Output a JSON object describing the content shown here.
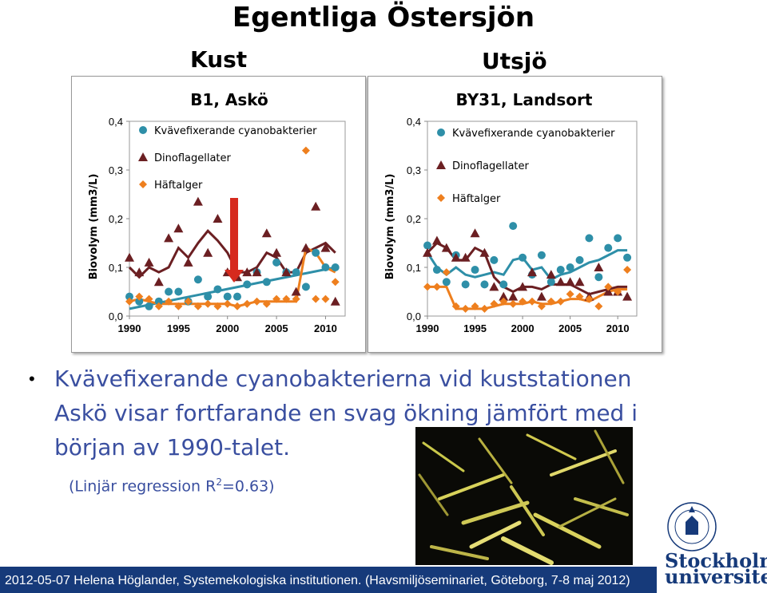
{
  "title": "Egentliga Östersjön",
  "left_heading": "Kust",
  "right_heading": "Utsjö",
  "colors": {
    "cyano": "#2e8fa8",
    "dino": "#6b1f22",
    "haft": "#ee7f1e",
    "footer": "#163a7a",
    "text_blue": "#3a4fa0"
  },
  "chart_data": [
    {
      "type": "scatter",
      "title": "B1, Askö",
      "ylabel": "Biovolym (mm3/L)",
      "xlim": [
        1990,
        2012
      ],
      "ylim": [
        0,
        0.4
      ],
      "xticks": [
        "1990",
        "1995",
        "2000",
        "2005",
        "2010"
      ],
      "yticks": [
        "0,0",
        "0,1",
        "0,2",
        "0,3",
        "0,4"
      ],
      "legend_position": "top-left",
      "series": [
        {
          "name": "Kvävefixerande cyanobakterier",
          "marker": "circle",
          "color": "#2e8fa8",
          "points": [
            [
              1990,
              0.04
            ],
            [
              1991,
              0.03
            ],
            [
              1992,
              0.02
            ],
            [
              1993,
              0.03
            ],
            [
              1994,
              0.05
            ],
            [
              1995,
              0.05
            ],
            [
              1996,
              0.03
            ],
            [
              1997,
              0.075
            ],
            [
              1998,
              0.04
            ],
            [
              1999,
              0.055
            ],
            [
              2000,
              0.04
            ],
            [
              2001,
              0.04
            ],
            [
              2002,
              0.065
            ],
            [
              2003,
              0.09
            ],
            [
              2004,
              0.07
            ],
            [
              2005,
              0.11
            ],
            [
              2006,
              0.09
            ],
            [
              2007,
              0.09
            ],
            [
              2008,
              0.06
            ],
            [
              2009,
              0.13
            ],
            [
              2010,
              0.1
            ],
            [
              2011,
              0.1
            ]
          ],
          "line": [
            [
              1990,
              0.015
            ],
            [
              2011,
              0.1
            ]
          ]
        },
        {
          "name": "Dinoflagellater",
          "marker": "triangle",
          "color": "#6b1f22",
          "points": [
            [
              1990,
              0.12
            ],
            [
              1991,
              0.09
            ],
            [
              1992,
              0.11
            ],
            [
              1993,
              0.07
            ],
            [
              1994,
              0.16
            ],
            [
              1995,
              0.18
            ],
            [
              1996,
              0.11
            ],
            [
              1997,
              0.235
            ],
            [
              1998,
              0.13
            ],
            [
              1999,
              0.2
            ],
            [
              2000,
              0.09
            ],
            [
              2001,
              0.08
            ],
            [
              2002,
              0.09
            ],
            [
              2003,
              0.09
            ],
            [
              2004,
              0.17
            ],
            [
              2005,
              0.13
            ],
            [
              2006,
              0.09
            ],
            [
              2007,
              0.05
            ],
            [
              2008,
              0.14
            ],
            [
              2009,
              0.225
            ],
            [
              2010,
              0.14
            ],
            [
              2011,
              0.03
            ]
          ],
          "line": [
            [
              1990,
              0.1
            ],
            [
              1991,
              0.08
            ],
            [
              1992,
              0.1
            ],
            [
              1993,
              0.09
            ],
            [
              1994,
              0.1
            ],
            [
              1995,
              0.14
            ],
            [
              1996,
              0.12
            ],
            [
              1997,
              0.15
            ],
            [
              1998,
              0.175
            ],
            [
              1999,
              0.155
            ],
            [
              2000,
              0.13
            ],
            [
              2001,
              0.09
            ],
            [
              2002,
              0.09
            ],
            [
              2003,
              0.1
            ],
            [
              2004,
              0.13
            ],
            [
              2005,
              0.12
            ],
            [
              2006,
              0.09
            ],
            [
              2007,
              0.09
            ],
            [
              2008,
              0.13
            ],
            [
              2009,
              0.14
            ],
            [
              2010,
              0.15
            ],
            [
              2011,
              0.13
            ]
          ]
        },
        {
          "name": "Häftalger",
          "marker": "diamond",
          "color": "#ee7f1e",
          "points": [
            [
              1990,
              0.03
            ],
            [
              1991,
              0.04
            ],
            [
              1992,
              0.035
            ],
            [
              1993,
              0.02
            ],
            [
              1994,
              0.03
            ],
            [
              1995,
              0.02
            ],
            [
              1996,
              0.03
            ],
            [
              1997,
              0.02
            ],
            [
              1998,
              0.025
            ],
            [
              1999,
              0.02
            ],
            [
              2000,
              0.025
            ],
            [
              2001,
              0.02
            ],
            [
              2002,
              0.025
            ],
            [
              2003,
              0.03
            ],
            [
              2004,
              0.025
            ],
            [
              2005,
              0.035
            ],
            [
              2006,
              0.035
            ],
            [
              2007,
              0.035
            ],
            [
              2008,
              0.34
            ],
            [
              2009,
              0.035
            ],
            [
              2010,
              0.035
            ],
            [
              2011,
              0.07
            ]
          ],
          "line": [
            [
              1990,
              0.03
            ],
            [
              1991,
              0.035
            ],
            [
              1992,
              0.03
            ],
            [
              1993,
              0.025
            ],
            [
              1994,
              0.025
            ],
            [
              1995,
              0.025
            ],
            [
              1996,
              0.025
            ],
            [
              1997,
              0.025
            ],
            [
              1998,
              0.025
            ],
            [
              1999,
              0.025
            ],
            [
              2000,
              0.025
            ],
            [
              2001,
              0.02
            ],
            [
              2002,
              0.025
            ],
            [
              2003,
              0.03
            ],
            [
              2004,
              0.03
            ],
            [
              2005,
              0.03
            ],
            [
              2006,
              0.03
            ],
            [
              2007,
              0.03
            ],
            [
              2008,
              0.14
            ],
            [
              2009,
              0.13
            ],
            [
              2010,
              0.1
            ],
            [
              2011,
              0.09
            ]
          ]
        }
      ]
    },
    {
      "type": "scatter",
      "title": "BY31, Landsort",
      "ylabel": "Biovolym (mm3/L)",
      "xlim": [
        1990,
        2012
      ],
      "ylim": [
        0,
        0.4
      ],
      "xticks": [
        "1990",
        "1995",
        "2000",
        "2005",
        "2010"
      ],
      "yticks": [
        "0,0",
        "0,1",
        "0,2",
        "0,3",
        "0,4"
      ],
      "legend_position": "top-left",
      "series": [
        {
          "name": "Kvävefixerande cyanobakterier",
          "marker": "circle",
          "color": "#2e8fa8",
          "points": [
            [
              1990,
              0.145
            ],
            [
              1991,
              0.095
            ],
            [
              1992,
              0.07
            ],
            [
              1993,
              0.125
            ],
            [
              1994,
              0.065
            ],
            [
              1995,
              0.095
            ],
            [
              1996,
              0.065
            ],
            [
              1997,
              0.115
            ],
            [
              1998,
              0.065
            ],
            [
              1999,
              0.185
            ],
            [
              2000,
              0.12
            ],
            [
              2001,
              0.085
            ],
            [
              2002,
              0.125
            ],
            [
              2003,
              0.07
            ],
            [
              2004,
              0.095
            ],
            [
              2005,
              0.1
            ],
            [
              2006,
              0.115
            ],
            [
              2007,
              0.16
            ],
            [
              2008,
              0.08
            ],
            [
              2009,
              0.14
            ],
            [
              2010,
              0.16
            ],
            [
              2011,
              0.12
            ]
          ],
          "line": [
            [
              1990,
              0.13
            ],
            [
              1991,
              0.1
            ],
            [
              1992,
              0.085
            ],
            [
              1993,
              0.1
            ],
            [
              1994,
              0.085
            ],
            [
              1995,
              0.08
            ],
            [
              1996,
              0.085
            ],
            [
              1997,
              0.09
            ],
            [
              1998,
              0.085
            ],
            [
              1999,
              0.115
            ],
            [
              2000,
              0.12
            ],
            [
              2001,
              0.095
            ],
            [
              2002,
              0.1
            ],
            [
              2003,
              0.075
            ],
            [
              2004,
              0.085
            ],
            [
              2005,
              0.09
            ],
            [
              2006,
              0.1
            ],
            [
              2007,
              0.11
            ],
            [
              2008,
              0.115
            ],
            [
              2009,
              0.125
            ],
            [
              2010,
              0.135
            ],
            [
              2011,
              0.135
            ]
          ]
        },
        {
          "name": "Dinoflagellater",
          "marker": "triangle",
          "color": "#6b1f22",
          "points": [
            [
              1990,
              0.13
            ],
            [
              1991,
              0.155
            ],
            [
              1992,
              0.14
            ],
            [
              1993,
              0.12
            ],
            [
              1994,
              0.12
            ],
            [
              1995,
              0.17
            ],
            [
              1996,
              0.13
            ],
            [
              1997,
              0.06
            ],
            [
              1998,
              0.04
            ],
            [
              1999,
              0.04
            ],
            [
              2000,
              0.06
            ],
            [
              2001,
              0.09
            ],
            [
              2002,
              0.04
            ],
            [
              2003,
              0.085
            ],
            [
              2004,
              0.07
            ],
            [
              2005,
              0.07
            ],
            [
              2006,
              0.07
            ],
            [
              2007,
              0.04
            ],
            [
              2008,
              0.1
            ],
            [
              2009,
              0.05
            ],
            [
              2010,
              0.05
            ],
            [
              2011,
              0.04
            ]
          ],
          "line": [
            [
              1990,
              0.13
            ],
            [
              1991,
              0.15
            ],
            [
              1992,
              0.14
            ],
            [
              1993,
              0.115
            ],
            [
              1994,
              0.115
            ],
            [
              1995,
              0.14
            ],
            [
              1996,
              0.13
            ],
            [
              1997,
              0.08
            ],
            [
              1998,
              0.06
            ],
            [
              1999,
              0.05
            ],
            [
              2000,
              0.06
            ],
            [
              2001,
              0.06
            ],
            [
              2002,
              0.055
            ],
            [
              2003,
              0.065
            ],
            [
              2004,
              0.065
            ],
            [
              2005,
              0.065
            ],
            [
              2006,
              0.055
            ],
            [
              2007,
              0.045
            ],
            [
              2008,
              0.05
            ],
            [
              2009,
              0.055
            ],
            [
              2010,
              0.06
            ],
            [
              2011,
              0.06
            ]
          ]
        },
        {
          "name": "Häftalger",
          "marker": "diamond",
          "color": "#ee7f1e",
          "points": [
            [
              1990,
              0.06
            ],
            [
              1991,
              0.06
            ],
            [
              1992,
              0.09
            ],
            [
              1993,
              0.02
            ],
            [
              1994,
              0.015
            ],
            [
              1995,
              0.02
            ],
            [
              1996,
              0.015
            ],
            [
              1997,
              0.025
            ],
            [
              1998,
              0.03
            ],
            [
              1999,
              0.025
            ],
            [
              2000,
              0.03
            ],
            [
              2001,
              0.03
            ],
            [
              2002,
              0.02
            ],
            [
              2003,
              0.03
            ],
            [
              2004,
              0.03
            ],
            [
              2005,
              0.045
            ],
            [
              2006,
              0.04
            ],
            [
              2007,
              0.035
            ],
            [
              2008,
              0.02
            ],
            [
              2009,
              0.06
            ],
            [
              2010,
              0.05
            ],
            [
              2011,
              0.095
            ]
          ],
          "line": [
            [
              1990,
              0.06
            ],
            [
              1991,
              0.06
            ],
            [
              1992,
              0.06
            ],
            [
              1993,
              0.015
            ],
            [
              1994,
              0.015
            ],
            [
              1995,
              0.015
            ],
            [
              1996,
              0.015
            ],
            [
              1997,
              0.02
            ],
            [
              1998,
              0.025
            ],
            [
              1999,
              0.025
            ],
            [
              2000,
              0.025
            ],
            [
              2001,
              0.03
            ],
            [
              2002,
              0.025
            ],
            [
              2003,
              0.025
            ],
            [
              2004,
              0.03
            ],
            [
              2005,
              0.035
            ],
            [
              2006,
              0.035
            ],
            [
              2007,
              0.03
            ],
            [
              2008,
              0.04
            ],
            [
              2009,
              0.05
            ],
            [
              2010,
              0.055
            ],
            [
              2011,
              0.055
            ]
          ]
        }
      ]
    }
  ],
  "bullet": {
    "text": "Kvävefixerande cyanobakterierna vid kuststationen Askö visar fortfarande en svag ökning jämfört med i början av 1990-talet."
  },
  "regression": {
    "prefix": "(Linjär regression R",
    "superscript": "2",
    "suffix": "=0.63)"
  },
  "footer": {
    "text": "2012-05-07 Helena Höglander, Systemekologiska institutionen. (Havsmiljöseminariet, Göteborg, 7-8 maj 2012)"
  },
  "logo": {
    "line1": "Stockholms",
    "line2": "universitet",
    "seal_text": "STOCKHOLMS UNIVERSITET"
  }
}
